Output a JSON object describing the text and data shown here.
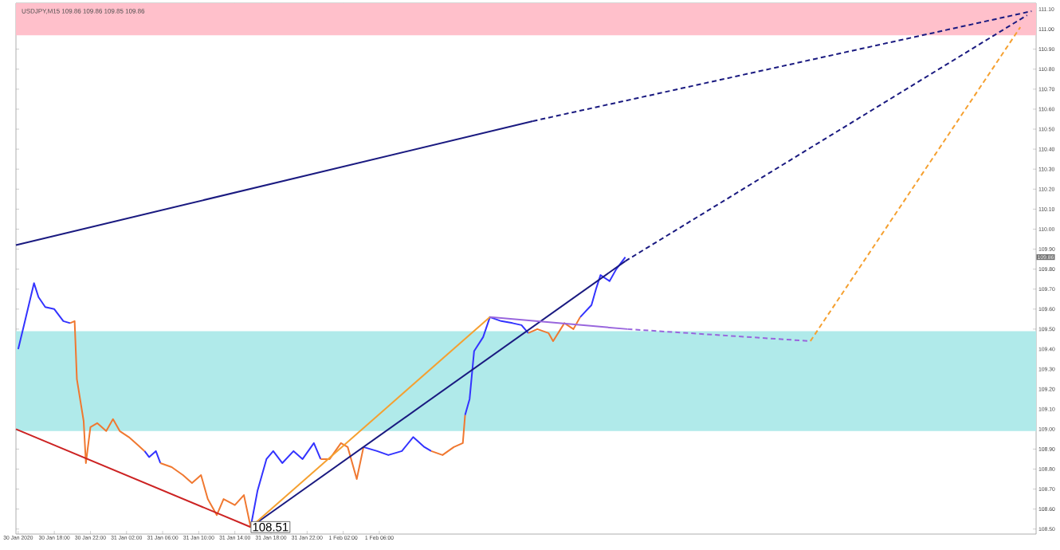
{
  "chart_data": {
    "type": "line",
    "title": "USDJPY,M15  109.86 109.86 109.85 109.86",
    "xlim": [
      "2020-01-30T13:45",
      "2020-02-04T06:45"
    ],
    "ylim": [
      108.475,
      111.13
    ],
    "xticks": [
      {
        "value": "2020-01-30T14:00",
        "label": "30 Jan 2020"
      },
      {
        "value": "2020-01-30T18:00",
        "label": "30 Jan 18:00"
      },
      {
        "value": "2020-01-30T22:00",
        "label": "30 Jan 22:00"
      },
      {
        "value": "2020-01-31T02:00",
        "label": "31 Jan 02:00"
      },
      {
        "value": "2020-01-31T06:00",
        "label": "31 Jan 06:00"
      },
      {
        "value": "2020-01-31T10:00",
        "label": "31 Jan 10:00"
      },
      {
        "value": "2020-01-31T14:00",
        "label": "31 Jan 14:00"
      },
      {
        "value": "2020-01-31T18:00",
        "label": "31 Jan 18:00"
      },
      {
        "value": "2020-01-31T22:00",
        "label": "31 Jan 22:00"
      },
      {
        "value": "2020-02-01T02:00",
        "label": "1 Feb 02:00"
      },
      {
        "value": "2020-02-01T06:00",
        "label": "1 Feb 06:00"
      }
    ],
    "yticks": [
      {
        "value": 108.5,
        "label": "108.50"
      },
      {
        "value": 108.6,
        "label": "108.60"
      },
      {
        "value": 108.7,
        "label": "108.70"
      },
      {
        "value": 108.8,
        "label": "108.80"
      },
      {
        "value": 108.9,
        "label": "108.90"
      },
      {
        "value": 109.0,
        "label": "109.00"
      },
      {
        "value": 109.1,
        "label": "109.10"
      },
      {
        "value": 109.2,
        "label": "109.20"
      },
      {
        "value": 109.3,
        "label": "109.30"
      },
      {
        "value": 109.4,
        "label": "109.40"
      },
      {
        "value": 109.5,
        "label": "109.50"
      },
      {
        "value": 109.6,
        "label": "109.60"
      },
      {
        "value": 109.7,
        "label": "109.70"
      },
      {
        "value": 109.8,
        "label": "109.80"
      },
      {
        "value": 109.9,
        "label": "109.90"
      },
      {
        "value": 110.0,
        "label": "110.00"
      },
      {
        "value": 110.1,
        "label": "110.10"
      },
      {
        "value": 110.2,
        "label": "110.20"
      },
      {
        "value": 110.3,
        "label": "110.30"
      },
      {
        "value": 110.4,
        "label": "110.40"
      },
      {
        "value": 110.5,
        "label": "110.50"
      },
      {
        "value": 110.6,
        "label": "110.60"
      },
      {
        "value": 110.7,
        "label": "110.70"
      },
      {
        "value": 110.8,
        "label": "110.80"
      },
      {
        "value": 110.9,
        "label": "110.90"
      },
      {
        "value": 111.0,
        "label": "111.00"
      },
      {
        "value": 111.1,
        "label": "111.10"
      }
    ],
    "bands": [
      {
        "axis": "y",
        "from": 110.97,
        "to": 111.13,
        "color": "#ffc0cb"
      },
      {
        "axis": "y",
        "from": 108.99,
        "to": 109.49,
        "color": "#b0eaea"
      }
    ],
    "annotations": [
      {
        "text": "108.51",
        "x": "2020-01-31T15:45",
        "y": 108.51
      },
      {
        "text": "109.86",
        "y": 109.86
      }
    ],
    "x": [
      "2020-01-30T14:00",
      "2020-01-30T14:45",
      "2020-01-30T15:45",
      "2020-01-30T16:15",
      "2020-01-30T17:00",
      "2020-01-30T18:00",
      "2020-01-30T19:00",
      "2020-01-30T19:45",
      "2020-01-30T20:15",
      "2020-01-30T20:30",
      "2020-01-30T21:15",
      "2020-01-30T21:30",
      "2020-01-30T22:00",
      "2020-01-30T22:45",
      "2020-01-30T23:45",
      "2020-01-31T00:30",
      "2020-01-31T01:15",
      "2020-01-31T02:15",
      "2020-01-31T03:00",
      "2020-01-31T04:00",
      "2020-01-31T04:30",
      "2020-01-31T05:15",
      "2020-01-31T05:45",
      "2020-01-31T07:00",
      "2020-01-31T08:15",
      "2020-01-31T09:15",
      "2020-01-31T10:15",
      "2020-01-31T11:00",
      "2020-01-31T12:00",
      "2020-01-31T12:45",
      "2020-01-31T14:00",
      "2020-01-31T15:00",
      "2020-01-31T15:45",
      "2020-01-31T16:30",
      "2020-01-31T17:30",
      "2020-01-31T18:15",
      "2020-01-31T19:15",
      "2020-01-31T20:30",
      "2020-01-31T21:30",
      "2020-01-31T22:45",
      "2020-01-31T23:30",
      "2020-02-01T00:30",
      "2020-02-01T01:45",
      "2020-02-01T02:30",
      "2020-02-01T03:30",
      "2020-02-01T04:15",
      "2020-02-01T05:45",
      "2020-02-01T07:00",
      "2020-02-01T08:30",
      "2020-02-01T09:45",
      "2020-02-01T11:00",
      "2020-02-01T11:45",
      "2020-02-01T13:00",
      "2020-02-01T14:15",
      "2020-02-01T15:15",
      "2020-02-01T15:30",
      "2020-02-01T16:00",
      "2020-02-01T16:30",
      "2020-02-01T17:30",
      "2020-02-01T18:15",
      "2020-02-01T19:30",
      "2020-02-01T20:45",
      "2020-02-01T21:45",
      "2020-02-01T22:30",
      "2020-02-01T23:30",
      "2020-02-02T00:45",
      "2020-02-02T01:15",
      "2020-02-02T02:30",
      "2020-02-02T03:30",
      "2020-02-02T04:15",
      "2020-02-02T05:30",
      "2020-02-02T06:00",
      "2020-02-02T06:30",
      "2020-02-02T07:30",
      "2020-02-02T08:15",
      "2020-02-02T09:15"
    ],
    "series": [
      {
        "color": "#3333ff",
        "line_style": "solid",
        "values": [
          109.4,
          109.54,
          109.73,
          109.66,
          109.61,
          109.6,
          109.54,
          109.53,
          null,
          null,
          null,
          null,
          null,
          null,
          null,
          null,
          null,
          null,
          null,
          108.89,
          108.86,
          108.89,
          108.83,
          null,
          null,
          null,
          null,
          null,
          null,
          null,
          null,
          null,
          108.51,
          108.69,
          108.85,
          108.89,
          108.83,
          108.89,
          108.85,
          108.93,
          108.85,
          null,
          null,
          null,
          null,
          108.91,
          108.89,
          108.87,
          108.89,
          108.96,
          108.91,
          108.89,
          null,
          null,
          null,
          109.07,
          109.15,
          109.39,
          109.46,
          109.56,
          109.54,
          109.53,
          109.52,
          109.48,
          null,
          null,
          null,
          null,
          null,
          109.56,
          109.62,
          109.7,
          109.77,
          109.74,
          109.8,
          109.86
        ]
      },
      {
        "color": "#f07830",
        "line_style": "solid",
        "values": [
          null,
          null,
          null,
          null,
          null,
          null,
          null,
          109.53,
          109.54,
          109.25,
          109.04,
          108.83,
          109.01,
          109.03,
          108.99,
          109.05,
          108.99,
          108.96,
          108.93,
          108.89,
          null,
          null,
          108.83,
          108.81,
          108.77,
          108.73,
          108.77,
          108.65,
          108.57,
          108.65,
          108.62,
          108.67,
          108.51,
          null,
          null,
          null,
          null,
          null,
          null,
          null,
          108.85,
          108.85,
          108.93,
          108.91,
          108.75,
          108.91,
          null,
          null,
          null,
          null,
          null,
          108.89,
          108.87,
          108.91,
          108.93,
          109.07,
          null,
          null,
          null,
          null,
          null,
          null,
          null,
          109.48,
          109.5,
          109.48,
          109.44,
          109.53,
          109.5,
          109.56,
          null,
          null,
          null,
          null,
          null,
          null
        ]
      },
      {
        "color": "#cc2222",
        "line_style": "solid",
        "x": [
          "2020-01-30T13:45",
          "2020-01-31T15:45"
        ],
        "values": [
          109.0,
          108.51
        ]
      },
      {
        "color": "#1a1a80",
        "line_style": "solid",
        "x": [
          "2020-01-30T13:45",
          "2020-02-01T23:00"
        ],
        "values": [
          109.92,
          110.54
        ]
      },
      {
        "color": "#1a1a80",
        "line_style": "dashed",
        "x": [
          "2020-02-01T23:00",
          "2020-02-04T06:15"
        ],
        "values": [
          110.54,
          111.09
        ]
      },
      {
        "color": "#1a1a80",
        "line_style": "solid",
        "x": [
          "2020-01-31T15:45",
          "2020-02-02T09:15"
        ],
        "values": [
          108.51,
          109.84
        ]
      },
      {
        "color": "#1a1a80",
        "line_style": "dashed",
        "x": [
          "2020-02-02T09:15",
          "2020-02-04T05:45"
        ],
        "values": [
          109.84,
          111.07
        ]
      },
      {
        "color": "#f5a030",
        "line_style": "solid",
        "x": [
          "2020-01-31T15:45",
          "2020-02-01T18:15"
        ],
        "values": [
          108.51,
          109.56
        ]
      },
      {
        "color": "#9966dd",
        "line_style": "solid",
        "x": [
          "2020-02-01T18:15",
          "2020-02-02T09:30"
        ],
        "values": [
          109.56,
          109.5
        ]
      },
      {
        "color": "#9966dd",
        "line_style": "dashed",
        "x": [
          "2020-02-02T09:30",
          "2020-02-03T05:45"
        ],
        "values": [
          109.5,
          109.44
        ]
      },
      {
        "color": "#f5a030",
        "line_style": "dashed",
        "x": [
          "2020-02-03T05:45",
          "2020-02-04T05:00"
        ],
        "values": [
          109.44,
          111.01
        ]
      }
    ]
  }
}
